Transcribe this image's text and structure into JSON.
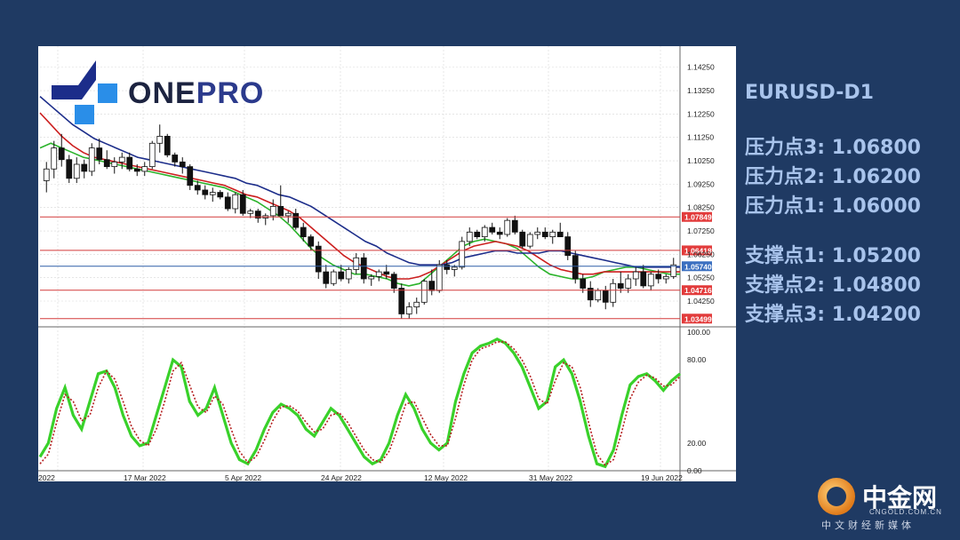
{
  "logo": {
    "one": "ONE",
    "pro": "PRO"
  },
  "sidebar": {
    "symbol": "EURUSD-D1",
    "resistance": [
      {
        "label": "压力点3: 1.06800"
      },
      {
        "label": "压力点2: 1.06200"
      },
      {
        "label": "压力点1: 1.06000"
      }
    ],
    "support": [
      {
        "label": "支撑点1: 1.05200"
      },
      {
        "label": "支撑点2: 1.04800"
      },
      {
        "label": "支撑点3: 1.04200"
      }
    ]
  },
  "footer": {
    "brand": "中金网",
    "url": "CNGOLD.COM.CN",
    "tagline": "中文财经新媒体"
  },
  "colors": {
    "background": "#1f3a63",
    "sidebar_text": "#a9c4ec",
    "level_line": "#d33a3a",
    "level_badge": "#e23b3b",
    "current_line": "#2f5fa8",
    "current_badge": "#3a6fc0",
    "ma_fast": "#2bb32b",
    "ma_mid": "#cc1f1f",
    "ma_slow": "#1c2d8a",
    "stoch_k": "#39d12a",
    "stoch_d": "#b52020"
  },
  "chart_data": [
    {
      "type": "candlestick",
      "title": "",
      "ylim": [
        1.033,
        1.15
      ],
      "y_ticks": [
        "1.14250",
        "1.13250",
        "1.12250",
        "1.11250",
        "1.10250",
        "1.09250",
        "1.08250",
        "1.07250",
        "1.06250",
        "1.05250",
        "1.04250"
      ],
      "x_labels": [
        "2022",
        "17 Mar 2022",
        "5 Apr 2022",
        "24 Apr 2022",
        "12 May 2022",
        "31 May 2022",
        "19 Jun 2022"
      ],
      "horizontal_levels": [
        {
          "value": 1.07849,
          "label": "1.07849",
          "kind": "level"
        },
        {
          "value": 1.06418,
          "label": "1.06418",
          "kind": "level"
        },
        {
          "value": 1.0574,
          "label": "1.05740",
          "kind": "current"
        },
        {
          "value": 1.04716,
          "label": "1.04716",
          "kind": "level"
        },
        {
          "value": 1.03499,
          "label": "1.03499",
          "kind": "level"
        }
      ],
      "candles": [
        [
          1.094,
          1.102,
          1.089,
          1.099
        ],
        [
          1.099,
          1.111,
          1.095,
          1.108
        ],
        [
          1.108,
          1.114,
          1.1,
          1.103
        ],
        [
          1.103,
          1.105,
          1.093,
          1.095
        ],
        [
          1.095,
          1.104,
          1.093,
          1.101
        ],
        [
          1.101,
          1.103,
          1.095,
          1.098
        ],
        [
          1.098,
          1.11,
          1.096,
          1.108
        ],
        [
          1.108,
          1.112,
          1.101,
          1.103
        ],
        [
          1.103,
          1.107,
          1.099,
          1.1
        ],
        [
          1.1,
          1.104,
          1.097,
          1.102
        ],
        [
          1.102,
          1.106,
          1.099,
          1.104
        ],
        [
          1.104,
          1.106,
          1.098,
          1.099
        ],
        [
          1.099,
          1.101,
          1.096,
          1.098
        ],
        [
          1.098,
          1.102,
          1.096,
          1.1
        ],
        [
          1.1,
          1.111,
          1.099,
          1.11
        ],
        [
          1.11,
          1.118,
          1.106,
          1.113
        ],
        [
          1.113,
          1.114,
          1.104,
          1.105
        ],
        [
          1.105,
          1.106,
          1.1,
          1.102
        ],
        [
          1.102,
          1.104,
          1.097,
          1.1
        ],
        [
          1.1,
          1.101,
          1.09,
          1.092
        ],
        [
          1.092,
          1.094,
          1.088,
          1.09
        ],
        [
          1.09,
          1.092,
          1.086,
          1.088
        ],
        [
          1.088,
          1.091,
          1.085,
          1.089
        ],
        [
          1.089,
          1.09,
          1.086,
          1.087
        ],
        [
          1.087,
          1.089,
          1.081,
          1.082
        ],
        [
          1.082,
          1.089,
          1.08,
          1.088
        ],
        [
          1.088,
          1.09,
          1.079,
          1.08
        ],
        [
          1.08,
          1.082,
          1.078,
          1.081
        ],
        [
          1.081,
          1.082,
          1.076,
          1.078
        ],
        [
          1.078,
          1.08,
          1.075,
          1.079
        ],
        [
          1.079,
          1.086,
          1.077,
          1.083
        ],
        [
          1.083,
          1.092,
          1.08,
          1.079
        ],
        [
          1.079,
          1.081,
          1.076,
          1.08
        ],
        [
          1.08,
          1.082,
          1.073,
          1.074
        ],
        [
          1.074,
          1.076,
          1.068,
          1.07
        ],
        [
          1.07,
          1.071,
          1.064,
          1.066
        ],
        [
          1.066,
          1.068,
          1.052,
          1.055
        ],
        [
          1.055,
          1.058,
          1.048,
          1.05
        ],
        [
          1.05,
          1.056,
          1.049,
          1.055
        ],
        [
          1.055,
          1.058,
          1.051,
          1.052
        ],
        [
          1.052,
          1.057,
          1.05,
          1.056
        ],
        [
          1.056,
          1.063,
          1.054,
          1.061
        ],
        [
          1.061,
          1.063,
          1.05,
          1.052
        ],
        [
          1.052,
          1.054,
          1.049,
          1.053
        ],
        [
          1.053,
          1.056,
          1.051,
          1.055
        ],
        [
          1.055,
          1.058,
          1.052,
          1.054
        ],
        [
          1.054,
          1.055,
          1.046,
          1.048
        ],
        [
          1.048,
          1.05,
          1.035,
          1.037
        ],
        [
          1.037,
          1.042,
          1.035,
          1.04
        ],
        [
          1.04,
          1.044,
          1.037,
          1.042
        ],
        [
          1.042,
          1.052,
          1.041,
          1.051
        ],
        [
          1.051,
          1.056,
          1.045,
          1.047
        ],
        [
          1.047,
          1.06,
          1.046,
          1.058
        ],
        [
          1.058,
          1.06,
          1.054,
          1.056
        ],
        [
          1.056,
          1.058,
          1.053,
          1.057
        ],
        [
          1.057,
          1.07,
          1.056,
          1.068
        ],
        [
          1.068,
          1.074,
          1.066,
          1.072
        ],
        [
          1.072,
          1.073,
          1.069,
          1.07
        ],
        [
          1.07,
          1.075,
          1.068,
          1.074
        ],
        [
          1.074,
          1.076,
          1.071,
          1.072
        ],
        [
          1.072,
          1.074,
          1.069,
          1.071
        ],
        [
          1.071,
          1.078,
          1.07,
          1.077
        ],
        [
          1.077,
          1.079,
          1.071,
          1.072
        ],
        [
          1.072,
          1.073,
          1.065,
          1.066
        ],
        [
          1.066,
          1.072,
          1.065,
          1.071
        ],
        [
          1.071,
          1.074,
          1.069,
          1.072
        ],
        [
          1.072,
          1.074,
          1.069,
          1.07
        ],
        [
          1.07,
          1.073,
          1.067,
          1.072
        ],
        [
          1.072,
          1.076,
          1.07,
          1.07
        ],
        [
          1.07,
          1.072,
          1.06,
          1.062
        ],
        [
          1.062,
          1.064,
          1.05,
          1.052
        ],
        [
          1.052,
          1.054,
          1.046,
          1.048
        ],
        [
          1.048,
          1.051,
          1.04,
          1.043
        ],
        [
          1.043,
          1.048,
          1.042,
          1.047
        ],
        [
          1.047,
          1.049,
          1.039,
          1.042
        ],
        [
          1.042,
          1.052,
          1.04,
          1.05
        ],
        [
          1.05,
          1.055,
          1.046,
          1.048
        ],
        [
          1.048,
          1.054,
          1.046,
          1.052
        ],
        [
          1.052,
          1.057,
          1.049,
          1.055
        ],
        [
          1.055,
          1.058,
          1.048,
          1.049
        ],
        [
          1.049,
          1.055,
          1.047,
          1.054
        ],
        [
          1.054,
          1.056,
          1.05,
          1.052
        ],
        [
          1.052,
          1.054,
          1.05,
          1.053
        ],
        [
          1.053,
          1.061,
          1.052,
          1.058
        ]
      ],
      "moving_averages": [
        {
          "name": "",
          "color": "#2bb32b",
          "values": [
            1.108,
            1.11,
            1.108,
            1.106,
            1.104,
            1.103,
            1.102,
            1.101,
            1.1,
            1.099,
            1.098,
            1.097,
            1.096,
            1.095,
            1.094,
            1.093,
            1.092,
            1.091,
            1.089,
            1.087,
            1.085,
            1.082,
            1.079,
            1.075,
            1.07,
            1.065,
            1.061,
            1.058,
            1.056,
            1.054,
            1.054,
            1.053,
            1.052,
            1.05,
            1.049,
            1.05,
            1.054,
            1.058,
            1.062,
            1.066,
            1.068,
            1.069,
            1.068,
            1.067,
            1.065,
            1.061,
            1.057,
            1.054,
            1.053,
            1.052,
            1.052,
            1.053,
            1.055,
            1.056,
            1.057,
            1.057,
            1.056,
            1.055,
            1.054,
            1.054
          ]
        },
        {
          "name": "",
          "color": "#cc1f1f",
          "values": [
            1.123,
            1.118,
            1.113,
            1.109,
            1.106,
            1.104,
            1.103,
            1.102,
            1.101,
            1.1,
            1.099,
            1.098,
            1.097,
            1.096,
            1.095,
            1.094,
            1.093,
            1.092,
            1.09,
            1.088,
            1.087,
            1.085,
            1.083,
            1.081,
            1.078,
            1.074,
            1.07,
            1.066,
            1.062,
            1.059,
            1.057,
            1.055,
            1.053,
            1.052,
            1.052,
            1.053,
            1.055,
            1.058,
            1.061,
            1.064,
            1.066,
            1.067,
            1.068,
            1.067,
            1.066,
            1.064,
            1.061,
            1.058,
            1.056,
            1.055,
            1.054,
            1.054,
            1.055,
            1.055,
            1.055,
            1.055,
            1.055,
            1.055,
            1.055,
            1.055
          ]
        },
        {
          "name": "",
          "color": "#1c2d8a",
          "values": [
            1.13,
            1.126,
            1.122,
            1.118,
            1.115,
            1.112,
            1.11,
            1.108,
            1.106,
            1.104,
            1.103,
            1.102,
            1.101,
            1.1,
            1.099,
            1.098,
            1.097,
            1.096,
            1.095,
            1.093,
            1.092,
            1.09,
            1.088,
            1.087,
            1.085,
            1.083,
            1.08,
            1.077,
            1.074,
            1.071,
            1.068,
            1.066,
            1.063,
            1.061,
            1.059,
            1.058,
            1.058,
            1.058,
            1.059,
            1.061,
            1.062,
            1.063,
            1.064,
            1.064,
            1.063,
            1.063,
            1.063,
            1.064,
            1.064,
            1.063,
            1.062,
            1.061,
            1.06,
            1.059,
            1.058,
            1.057,
            1.057,
            1.057,
            1.057,
            1.057
          ]
        }
      ]
    },
    {
      "type": "line",
      "title": "",
      "ylim": [
        0,
        100
      ],
      "y_ticks": [
        "100.00",
        "80.00",
        "20.00",
        "0.00"
      ],
      "series": [
        {
          "name": "",
          "color": "#39d12a",
          "values": [
            10,
            20,
            45,
            60,
            40,
            30,
            50,
            70,
            72,
            60,
            40,
            25,
            18,
            20,
            40,
            60,
            80,
            75,
            50,
            40,
            45,
            60,
            40,
            20,
            8,
            5,
            15,
            30,
            42,
            48,
            45,
            40,
            30,
            25,
            35,
            45,
            40,
            30,
            20,
            10,
            5,
            8,
            20,
            40,
            55,
            45,
            30,
            20,
            15,
            20,
            50,
            70,
            85,
            90,
            92,
            95,
            92,
            85,
            75,
            60,
            45,
            50,
            75,
            80,
            70,
            50,
            25,
            5,
            3,
            15,
            40,
            62,
            68,
            70,
            65,
            58,
            65,
            70
          ]
        },
        {
          "name": "",
          "color": "#b52020",
          "values": [
            5,
            12,
            35,
            55,
            50,
            36,
            40,
            60,
            72,
            66,
            50,
            32,
            22,
            18,
            30,
            50,
            72,
            78,
            62,
            46,
            42,
            54,
            48,
            30,
            14,
            6,
            10,
            22,
            36,
            46,
            47,
            43,
            35,
            28,
            30,
            40,
            42,
            35,
            25,
            15,
            8,
            6,
            14,
            30,
            48,
            50,
            38,
            26,
            18,
            18,
            38,
            62,
            80,
            88,
            90,
            93,
            93,
            88,
            80,
            68,
            52,
            48,
            65,
            78,
            75,
            60,
            35,
            12,
            4,
            8,
            28,
            52,
            64,
            69,
            67,
            61,
            62,
            68
          ]
        }
      ]
    }
  ]
}
